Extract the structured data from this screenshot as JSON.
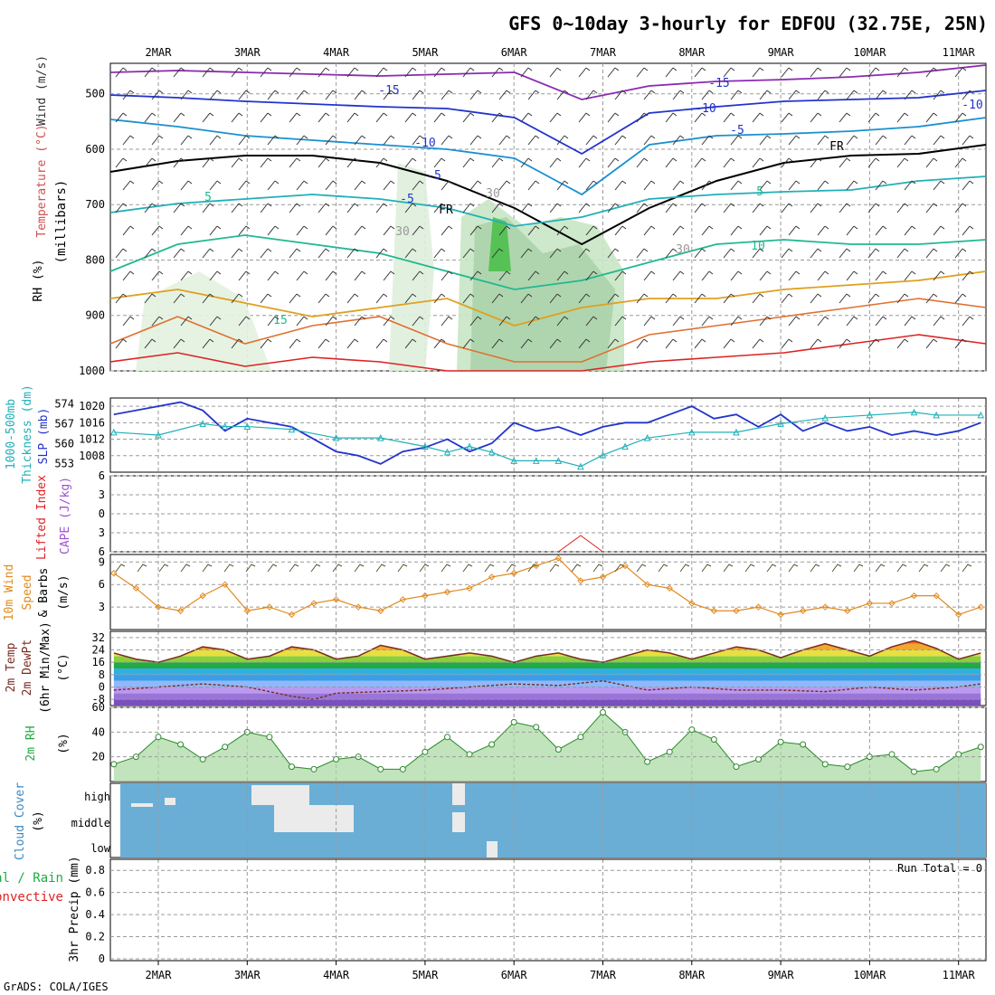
{
  "title": "GFS 0~10day 3-hourly for EDFOU (32.75E, 25N)",
  "credit": "GrADS: COLA/IGES",
  "days": [
    "2MAR",
    "3MAR",
    "4MAR",
    "5MAR",
    "6MAR",
    "7MAR",
    "8MAR",
    "9MAR",
    "10MAR",
    "11MAR"
  ],
  "colors": {
    "green": "#22aa44",
    "blue": "#2233cc",
    "cyan": "#20b0b8",
    "red": "#dd2222",
    "orange": "#e09030",
    "purple": "#a050d0",
    "windline": "#e08a20",
    "cloud": "#6aaed6",
    "cloud_fill": "#ebebeb",
    "rh_fill": "#a6d9a0"
  },
  "panels": {
    "upper_air": {
      "ylabels": [
        "RH (%)",
        "Temperature (°C)",
        "Wind (m/s)"
      ],
      "unit_label": "(millibars)",
      "yticks": [
        "500",
        "600",
        "700",
        "800",
        "900",
        "1000"
      ],
      "contour_labels": [
        "-15",
        "-15",
        "-10",
        "-10",
        "-10",
        "-5",
        "-5",
        "-5",
        "5",
        "5",
        "10",
        "15",
        "30",
        "30",
        "30",
        "FR",
        "FR"
      ]
    },
    "slp": {
      "ylabels": [
        "1000-500mb",
        "Thickness (dm)",
        "SLP (mb)"
      ],
      "left_ticks": [
        "574",
        "567",
        "560",
        "553"
      ],
      "right_ticks": [
        "1020",
        "1016",
        "1012",
        "1008"
      ]
    },
    "cape": {
      "ylabels": [
        "Lifted Index",
        "CAPE (J/kg)"
      ],
      "ticks": [
        "-6",
        "-3",
        "0",
        "3",
        "6"
      ]
    },
    "wind10": {
      "ylabels": [
        "10m Wind",
        "Speed",
        "& Barbs",
        "(m/s)"
      ],
      "ticks": [
        "9",
        "6",
        "3"
      ]
    },
    "temp2m": {
      "ylabels": [
        "2m Temp",
        "2m DewPt",
        "(6hr Min/Max)",
        "(°C)"
      ],
      "ticks": [
        "32",
        "24",
        "16",
        "8",
        "0",
        "-8"
      ]
    },
    "rh2m": {
      "ylabels": [
        "2m RH",
        "(%)"
      ],
      "ticks": [
        "60",
        "40",
        "20"
      ]
    },
    "cloud": {
      "ylabels": [
        "Cloud Cover",
        "(%)"
      ],
      "levels": [
        "high",
        "middle",
        "low"
      ]
    },
    "precip": {
      "ylabels": [
        "Total / Rain",
        "Convective",
        "3hr Precip (mm)"
      ],
      "ticks": [
        "0.8",
        "0.6",
        "0.4",
        "0.2",
        "0"
      ],
      "run_total": "Run Total = 0"
    }
  },
  "chart_data": [
    {
      "type": "line",
      "title": "SLP / 1000-500mb Thickness",
      "ylabel": "SLP (mb)",
      "ylim": [
        1004,
        1022
      ],
      "series": [
        {
          "name": "SLP (mb)",
          "x_days": [
            1.5,
            2.0,
            2.25,
            2.5,
            2.75,
            3.0,
            3.5,
            4.0,
            4.25,
            4.5,
            4.75,
            5.0,
            5.25,
            5.5,
            5.75,
            6.0,
            6.25,
            6.5,
            6.75,
            7.0,
            7.25,
            7.5,
            8.0,
            8.25,
            8.5,
            8.75,
            9.0,
            9.25,
            9.5,
            9.75,
            10.0,
            10.25,
            10.5,
            10.75,
            11.0,
            11.25
          ],
          "values": [
            1018,
            1020,
            1021,
            1019,
            1014,
            1017,
            1015,
            1009,
            1008,
            1006,
            1009,
            1010,
            1012,
            1009,
            1011,
            1016,
            1014,
            1015,
            1013,
            1015,
            1016,
            1016,
            1020,
            1017,
            1018,
            1015,
            1018,
            1014,
            1016,
            1014,
            1015,
            1013,
            1014,
            1013,
            1014,
            1016
          ]
        },
        {
          "name": "1000-500mb Thickness (dm)",
          "left_ylim": [
            550,
            576
          ],
          "x_days": [
            1.5,
            2.0,
            2.5,
            2.75,
            3.0,
            3.5,
            4.0,
            4.5,
            5.0,
            5.25,
            5.5,
            5.75,
            6.0,
            6.25,
            6.5,
            6.75,
            7.0,
            7.25,
            7.5,
            8.0,
            8.5,
            9.0,
            9.5,
            10.0,
            10.5,
            10.75,
            11.25
          ],
          "values": [
            564,
            563,
            567,
            566,
            566,
            565,
            562,
            562,
            559,
            557,
            559,
            557,
            554,
            554,
            554,
            552,
            556,
            559,
            562,
            564,
            564,
            567,
            569,
            570,
            571,
            570,
            570
          ]
        }
      ]
    },
    {
      "type": "line",
      "title": "Lifted Index / CAPE",
      "ylabel": "Lifted Index",
      "ylim": [
        6,
        -6
      ],
      "series": [
        {
          "name": "CAPE (J/kg)",
          "x_days": [
            6.5,
            6.75,
            7.0
          ],
          "values": [
            3,
            0,
            3
          ]
        }
      ]
    },
    {
      "type": "line",
      "title": "10m Wind Speed",
      "ylabel": "(m/s)",
      "ylim": [
        0,
        10
      ],
      "x_days": [
        1.5,
        1.75,
        2.0,
        2.25,
        2.5,
        2.75,
        3.0,
        3.25,
        3.5,
        3.75,
        4.0,
        4.25,
        4.5,
        4.75,
        5.0,
        5.25,
        5.5,
        5.75,
        6.0,
        6.25,
        6.5,
        6.75,
        7.0,
        7.25,
        7.5,
        7.75,
        8.0,
        8.25,
        8.5,
        8.75,
        9.0,
        9.25,
        9.5,
        9.75,
        10.0,
        10.25,
        10.5,
        10.75,
        11.0,
        11.25
      ],
      "values": [
        7.5,
        5.5,
        3.0,
        2.5,
        4.5,
        6.0,
        2.5,
        3.0,
        2.0,
        3.5,
        4.0,
        3.0,
        2.5,
        4.0,
        4.5,
        5.0,
        5.5,
        7.0,
        7.5,
        8.5,
        9.5,
        6.5,
        7.0,
        8.5,
        6.0,
        5.5,
        3.5,
        2.5,
        2.5,
        3.0,
        2.0,
        2.5,
        3.0,
        2.5,
        3.5,
        3.5,
        4.5,
        4.5,
        2.0,
        3.0
      ]
    },
    {
      "type": "line",
      "title": "2m Temp / 2m DewPt",
      "ylabel": "(°C)",
      "ylim": [
        -12,
        36
      ],
      "series": [
        {
          "name": "2m Temp",
          "x_days": [
            1.5,
            1.75,
            2.0,
            2.25,
            2.5,
            2.75,
            3.0,
            3.25,
            3.5,
            3.75,
            4.0,
            4.25,
            4.5,
            4.75,
            5.0,
            5.25,
            5.5,
            5.75,
            6.0,
            6.25,
            6.5,
            6.75,
            7.0,
            7.25,
            7.5,
            7.75,
            8.0,
            8.25,
            8.5,
            8.75,
            9.0,
            9.25,
            9.5,
            9.75,
            10.0,
            10.25,
            10.5,
            10.75,
            11.0,
            11.25
          ],
          "values": [
            22,
            18,
            16,
            20,
            26,
            24,
            18,
            20,
            26,
            24,
            18,
            20,
            27,
            24,
            18,
            20,
            22,
            20,
            16,
            20,
            22,
            18,
            16,
            20,
            24,
            22,
            18,
            22,
            26,
            24,
            19,
            24,
            28,
            24,
            20,
            26,
            30,
            25,
            18,
            22
          ]
        },
        {
          "name": "2m DewPt",
          "x_days": [
            1.5,
            2.0,
            2.5,
            3.0,
            3.5,
            3.75,
            4.0,
            4.5,
            5.0,
            5.5,
            6.0,
            6.5,
            7.0,
            7.5,
            8.0,
            8.5,
            9.0,
            9.5,
            10.0,
            10.5,
            11.0,
            11.25
          ],
          "values": [
            -2,
            0,
            2,
            0,
            -6,
            -8,
            -4,
            -3,
            -2,
            0,
            2,
            1,
            4,
            -2,
            0,
            -2,
            -2,
            -3,
            0,
            -2,
            0,
            2
          ]
        }
      ]
    },
    {
      "type": "area",
      "title": "2m RH",
      "ylabel": "(%)",
      "ylim": [
        0,
        60
      ],
      "x_days": [
        1.5,
        1.75,
        2.0,
        2.25,
        2.5,
        2.75,
        3.0,
        3.25,
        3.5,
        3.75,
        4.0,
        4.25,
        4.5,
        4.75,
        5.0,
        5.25,
        5.5,
        5.75,
        6.0,
        6.25,
        6.5,
        6.75,
        7.0,
        7.25,
        7.5,
        7.75,
        8.0,
        8.25,
        8.5,
        8.75,
        9.0,
        9.25,
        9.5,
        9.75,
        10.0,
        10.25,
        10.5,
        10.75,
        11.0,
        11.25
      ],
      "values": [
        14,
        20,
        36,
        30,
        18,
        28,
        40,
        36,
        12,
        10,
        18,
        20,
        10,
        10,
        24,
        36,
        22,
        30,
        48,
        44,
        26,
        36,
        56,
        40,
        16,
        24,
        42,
        34,
        12,
        18,
        32,
        30,
        14,
        12,
        20,
        22,
        8,
        10,
        22,
        28
      ]
    },
    {
      "type": "heatmap",
      "title": "Cloud Cover",
      "levels": [
        "high",
        "middle",
        "low"
      ],
      "note": "mostly clear; brief high/middle cloud 3MAR-4MAR and 5MAR, low cloud 6MAR"
    },
    {
      "type": "bar",
      "title": "3hr Precip (mm)",
      "ylabel": "3hr Precip (mm)",
      "ylim": [
        0,
        0.9
      ],
      "run_total": 0,
      "values": []
    }
  ]
}
